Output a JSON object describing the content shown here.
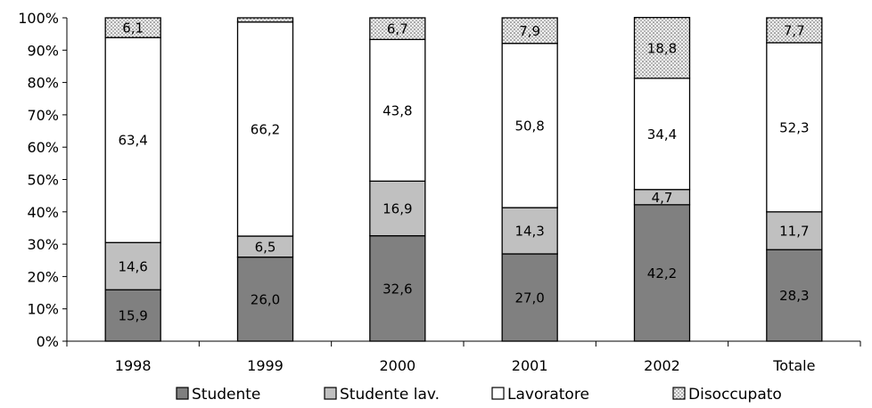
{
  "chart_data": {
    "type": "bar",
    "stacked": true,
    "percent_axis": true,
    "categories": [
      "1998",
      "1999",
      "2000",
      "2001",
      "2002",
      "Totale"
    ],
    "series": [
      {
        "name": "Studente",
        "values": [
          15.9,
          26.0,
          32.6,
          27.0,
          42.2,
          28.3
        ],
        "labels": [
          "15,9",
          "26,0",
          "32,6",
          "27,0",
          "42,2",
          "28,3"
        ],
        "color": "#808080",
        "pattern": "solid"
      },
      {
        "name": "Studente lav.",
        "values": [
          14.6,
          6.5,
          16.9,
          14.3,
          4.7,
          11.7
        ],
        "labels": [
          "14,6",
          "6,5",
          "16,9",
          "14,3",
          "4,7",
          "11,7"
        ],
        "color": "#c0c0c0",
        "pattern": "solid"
      },
      {
        "name": "Lavoratore",
        "values": [
          63.4,
          66.2,
          43.8,
          50.8,
          34.4,
          52.3
        ],
        "labels": [
          "63,4",
          "66,2",
          "43,8",
          "50,8",
          "34,4",
          "52,3"
        ],
        "color": "#ffffff",
        "pattern": "solid"
      },
      {
        "name": "Disoccupato",
        "values": [
          6.1,
          1.3,
          6.7,
          7.9,
          18.8,
          7.7
        ],
        "labels": [
          "6,1",
          "",
          "6,7",
          "7,9",
          "18,8",
          "7,7"
        ],
        "color": "#e4e4e4",
        "pattern": "dotted"
      }
    ],
    "y_ticks": [
      "0%",
      "10%",
      "20%",
      "30%",
      "40%",
      "50%",
      "60%",
      "70%",
      "80%",
      "90%",
      "100%"
    ],
    "ylim": [
      0,
      100
    ],
    "grid": false,
    "legend_position": "bottom",
    "title": "",
    "xlabel": "",
    "ylabel": ""
  }
}
